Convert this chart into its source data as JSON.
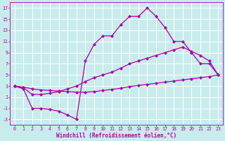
{
  "xlabel": "Windchill (Refroidissement éolien,°C)",
  "bg_color": "#c8ecec",
  "line_color": "#aa00aa",
  "grid_color": "#ffffff",
  "xlim": [
    -0.5,
    23.5
  ],
  "ylim": [
    -4,
    18
  ],
  "xticks": [
    0,
    1,
    2,
    3,
    4,
    5,
    6,
    7,
    8,
    9,
    10,
    11,
    12,
    13,
    14,
    15,
    16,
    17,
    18,
    19,
    20,
    21,
    22,
    23
  ],
  "yticks": [
    -3,
    -1,
    1,
    3,
    5,
    7,
    9,
    11,
    13,
    15,
    17
  ],
  "c1_x": [
    0,
    1,
    2,
    3,
    4,
    5,
    6,
    7,
    8,
    9,
    10,
    11,
    12,
    13,
    14,
    15,
    16,
    17,
    18,
    19,
    20,
    21,
    22,
    23
  ],
  "c1_y": [
    3.0,
    2.5,
    -1.0,
    -1.0,
    -1.2,
    -1.5,
    -2.2,
    -3.0,
    7.5,
    10.5,
    12.0,
    12.0,
    14.0,
    15.5,
    15.5,
    17.0,
    15.5,
    13.5,
    11.0,
    11.0,
    9.0,
    7.0,
    7.0,
    5.0
  ],
  "c2_x": [
    0,
    1,
    2,
    3,
    4,
    5,
    6,
    7,
    8,
    9,
    10,
    11,
    12,
    13,
    14,
    15,
    16,
    17,
    18,
    19,
    20,
    21,
    22,
    23
  ],
  "c2_y": [
    3.0,
    2.7,
    1.5,
    1.5,
    1.7,
    2.0,
    2.5,
    3.0,
    3.8,
    4.5,
    5.0,
    5.5,
    6.2,
    7.0,
    7.5,
    8.0,
    8.5,
    9.0,
    9.5,
    10.0,
    9.2,
    8.5,
    7.5,
    5.0
  ],
  "c3_x": [
    0,
    1,
    2,
    3,
    4,
    5,
    6,
    7,
    8,
    9,
    10,
    11,
    12,
    13,
    14,
    15,
    16,
    17,
    18,
    19,
    20,
    21,
    22,
    23
  ],
  "c3_y": [
    3.0,
    2.8,
    2.5,
    2.3,
    2.2,
    2.1,
    2.0,
    1.9,
    1.9,
    2.0,
    2.2,
    2.4,
    2.6,
    2.9,
    3.1,
    3.3,
    3.5,
    3.7,
    3.9,
    4.1,
    4.3,
    4.5,
    4.7,
    5.0
  ],
  "xlabel_fontsize": 5.5,
  "tick_fontsize": 4.8,
  "linewidth": 0.9,
  "markersize": 2.2
}
